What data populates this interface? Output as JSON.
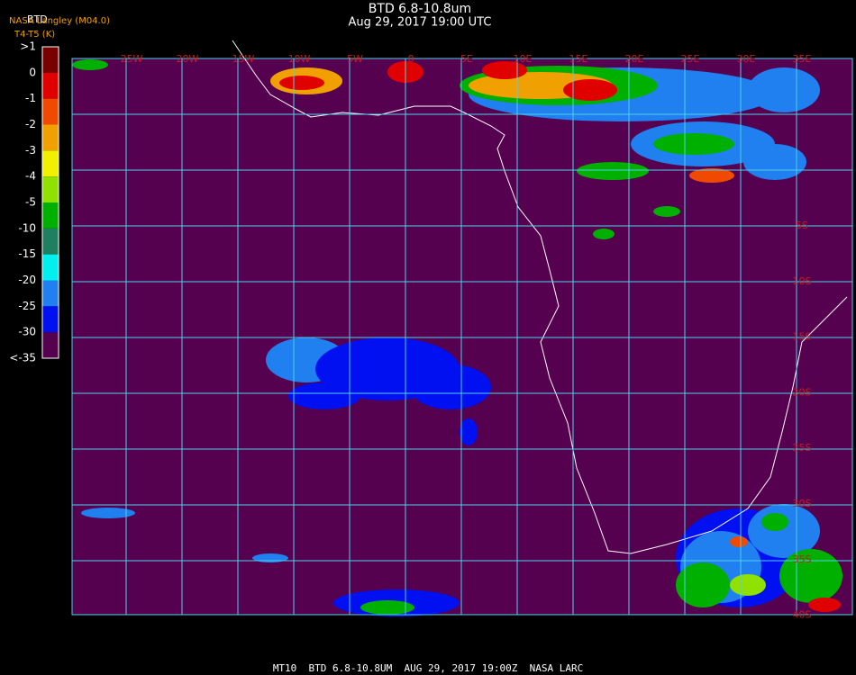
{
  "header": {
    "title": "BTD 6.8-10.8um",
    "subtitle": "Aug 29, 2017 19:00 UTC",
    "source": "NASA Langley (M04.0)",
    "product": "BTD",
    "units": "T4-T5 (K)"
  },
  "legend": {
    "labels": [
      ">1",
      "0",
      "-1",
      "-2",
      "-3",
      "-4",
      "-5",
      "-10",
      "-15",
      "-20",
      "-25",
      "-30",
      "<-35"
    ],
    "colors": [
      "#780000",
      "#e00000",
      "#f04a00",
      "#f0a000",
      "#f0f000",
      "#90e000",
      "#00b000",
      "#1e8060",
      "#00f0f0",
      "#2080f0",
      "#0010f0",
      "#560050"
    ]
  },
  "map": {
    "longitude_labels": [
      "25W",
      "20W",
      "15W",
      "10W",
      "5W",
      "0",
      "5E",
      "10E",
      "15E",
      "20E",
      "25E",
      "30E",
      "35E"
    ],
    "latitude_labels": [
      "5S",
      "10S",
      "15S",
      "20S",
      "25S",
      "30S",
      "35S",
      "40S"
    ]
  },
  "footer": "MT10  BTD 6.8-10.8UM  AUG 29, 2017 19:00Z  NASA LARC"
}
